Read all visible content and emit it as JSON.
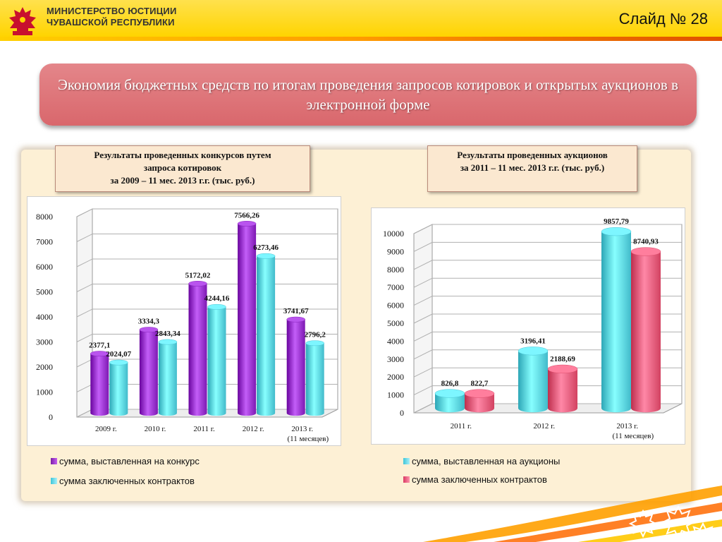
{
  "header": {
    "ministry_line1": "МИНИСТЕРСТВО ЮСТИЦИИ",
    "ministry_line2": "ЧУВАШСКОЙ РЕСПУБЛИКИ",
    "slide_number": "Слайд № 28"
  },
  "banner": {
    "title": "Экономия бюджетных средств по итогам проведения запросов котировок и открытых  аукционов в электронной форме"
  },
  "captions": {
    "left_line1": "Результаты проведенных конкурсов путем",
    "left_line2": "запроса котировок",
    "left_line3": "за 2009 – 11 мес. 2013 г.г. (тыс. руб.)",
    "right_line1": "Результаты проведенных аукционов",
    "right_line2": "за 2011 – 11 мес. 2013 г.г. (тыс. руб.)"
  },
  "colors": {
    "purple": "#9b36d0",
    "cyan": "#5fd8e8",
    "pink": "#f0607f"
  },
  "chart_data": [
    {
      "type": "bar",
      "categories": [
        "2009 г.",
        "2010 г.",
        "2011 г.",
        "2012 г.",
        "2013 г."
      ],
      "category_sublabels": [
        "",
        "",
        "",
        "",
        "(11 месяцев)"
      ],
      "series": [
        {
          "name": "сумма, выставленная на конкурс",
          "values": [
            2377.1,
            3334.3,
            5172.02,
            7566.26,
            3741.67
          ],
          "labels": [
            "2377,1",
            "3334,3",
            "5172,02",
            "7566,26",
            "3741,67"
          ],
          "color": "#9b36d0"
        },
        {
          "name": "сумма заключенных контрактов",
          "values": [
            2024.07,
            2843.34,
            4244.16,
            6273.46,
            2796.2
          ],
          "labels": [
            "2024,07",
            "2843,34",
            "4244,16",
            "6273,46",
            "2796,2"
          ],
          "color": "#5fd8e8"
        }
      ],
      "yticks": [
        "0",
        "1000",
        "2000",
        "3000",
        "4000",
        "5000",
        "6000",
        "7000",
        "8000"
      ],
      "ylim": [
        0,
        8000
      ]
    },
    {
      "type": "bar",
      "categories": [
        "2011 г.",
        "2012 г.",
        "2013 г."
      ],
      "category_sublabels": [
        "",
        "",
        "(11 месяцев)"
      ],
      "series": [
        {
          "name": "сумма, выставленная на аукционы",
          "values": [
            826.8,
            3196.41,
            9857.79
          ],
          "labels": [
            "826,8",
            "3196,41",
            "9857,79"
          ],
          "color": "#5fd8e8"
        },
        {
          "name": "сумма заключенных контрактов",
          "values": [
            822.7,
            2188.69,
            8740.93
          ],
          "labels": [
            "822,7",
            "2188,69",
            "8740,93"
          ],
          "color": "#f0607f"
        }
      ],
      "yticks": [
        "0",
        "1000",
        "2000",
        "3000",
        "4000",
        "5000",
        "6000",
        "7000",
        "8000",
        "9000",
        "10000"
      ],
      "ylim": [
        0,
        10000
      ]
    }
  ]
}
